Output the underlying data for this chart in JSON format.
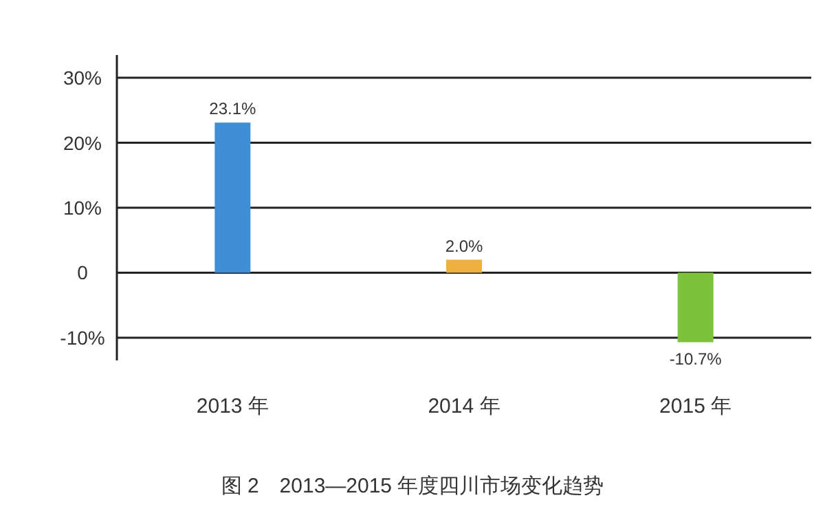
{
  "chart_data": {
    "type": "bar",
    "title": "图 2　2013—2015 年度四川市场变化趋势",
    "categories": [
      "2013 年",
      "2014 年",
      "2015 年"
    ],
    "values": [
      23.1,
      2.0,
      -10.7
    ],
    "colors": [
      "#3f8fd6",
      "#f0b040",
      "#7cc23a"
    ],
    "value_labels": [
      "23.1%",
      "2.0%",
      "-10.7%"
    ],
    "ylim": [
      -13.5,
      33.5
    ],
    "yticks": [
      {
        "value": -10,
        "label": "-10%"
      },
      {
        "value": 0,
        "label": "0"
      },
      {
        "value": 10,
        "label": "10%"
      },
      {
        "value": 20,
        "label": "20%"
      },
      {
        "value": 30,
        "label": "30%"
      }
    ],
    "grid": "y"
  }
}
